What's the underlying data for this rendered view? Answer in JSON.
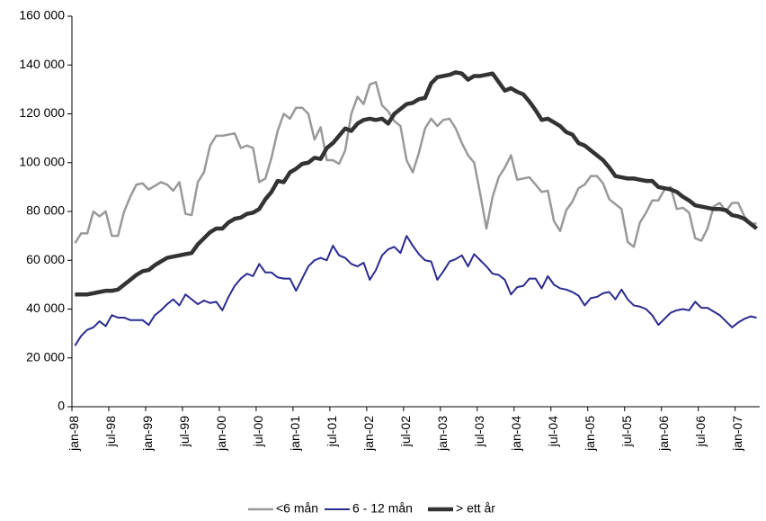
{
  "chart_data": {
    "type": "line",
    "categories": [
      "jan-98",
      null,
      null,
      null,
      null,
      null,
      "jul-98",
      null,
      null,
      null,
      null,
      null,
      "jan-99",
      null,
      null,
      null,
      null,
      null,
      "jul-99",
      null,
      null,
      null,
      null,
      null,
      "jan-00",
      null,
      null,
      null,
      null,
      null,
      "jul-00",
      null,
      null,
      null,
      null,
      null,
      "jan-01",
      null,
      null,
      null,
      null,
      null,
      "jul-01",
      null,
      null,
      null,
      null,
      null,
      "jan-02",
      null,
      null,
      null,
      null,
      null,
      "jul-02",
      null,
      null,
      null,
      null,
      null,
      "jan-03",
      null,
      null,
      null,
      null,
      null,
      "jul-03",
      null,
      null,
      null,
      null,
      null,
      "jan-04",
      null,
      null,
      null,
      null,
      null,
      "jul-04",
      null,
      null,
      null,
      null,
      null,
      "jan-05",
      null,
      null,
      null,
      null,
      null,
      "jul-05",
      null,
      null,
      null,
      null,
      null,
      "jan-06",
      null,
      null,
      null,
      null,
      null,
      "jul-06",
      null,
      null,
      null,
      null,
      null,
      "jan-07",
      null,
      null,
      null
    ],
    "series": [
      {
        "name": "<6 mån",
        "color": "#999999",
        "width": 2.5,
        "values": [
          67000,
          71000,
          71000,
          80000,
          78000,
          80000,
          70000,
          70000,
          80000,
          86000,
          91000,
          91500,
          89000,
          90500,
          92000,
          91000,
          88500,
          92000,
          79000,
          78500,
          92000,
          96000,
          107000,
          111000,
          111000,
          111500,
          112000,
          106000,
          107000,
          106000,
          92000,
          93500,
          102000,
          113000,
          120000,
          118000,
          122500,
          122500,
          120000,
          109500,
          114500,
          101000,
          101000,
          99500,
          105000,
          120000,
          127000,
          124000,
          132000,
          133000,
          123500,
          121000,
          117000,
          115000,
          101000,
          96000,
          104000,
          114000,
          118000,
          115000,
          117500,
          118000,
          114000,
          108000,
          103000,
          100000,
          87000,
          73000,
          86000,
          94000,
          98000,
          103000,
          93000,
          93500,
          94000,
          91000,
          88000,
          88500,
          76000,
          72000,
          80500,
          84000,
          89500,
          91000,
          94500,
          94500,
          91500,
          85000,
          83000,
          81000,
          67500,
          65500,
          75500,
          79500,
          84500,
          84500,
          89000,
          90000,
          81000,
          81500,
          79500,
          69000,
          68000,
          73000,
          82000,
          83500,
          80000,
          83500,
          83500,
          78000,
          75000,
          75000
        ]
      },
      {
        "name": "6 - 12 mån",
        "color": "#2b2b90",
        "width": 2,
        "values": [
          25000,
          29000,
          31500,
          32500,
          35000,
          33000,
          37500,
          36500,
          36500,
          35500,
          35500,
          35500,
          33500,
          37500,
          39500,
          42000,
          44000,
          41500,
          46000,
          44000,
          42000,
          43500,
          42500,
          43000,
          39500,
          45000,
          49500,
          52500,
          54500,
          53500,
          58500,
          55000,
          55000,
          53000,
          52500,
          52500,
          47500,
          52500,
          57500,
          60000,
          61000,
          60000,
          66000,
          62000,
          61000,
          58500,
          57500,
          59000,
          52000,
          56000,
          62000,
          64500,
          65500,
          63000,
          70000,
          66000,
          62500,
          60000,
          59500,
          52000,
          55500,
          59500,
          60500,
          62000,
          57500,
          62500,
          60000,
          57500,
          54500,
          54000,
          52000,
          46000,
          49000,
          49500,
          52500,
          52500,
          48500,
          53500,
          50000,
          48500,
          48000,
          47000,
          45500,
          41500,
          44500,
          45000,
          46500,
          47000,
          44000,
          48000,
          44000,
          41500,
          41000,
          40000,
          37500,
          33500,
          36000,
          38500,
          39500,
          40000,
          39500,
          43000,
          40500,
          40500,
          39000,
          37500,
          35000,
          32500,
          34500,
          36000,
          37000,
          36500
        ]
      },
      {
        "name": "> ett år",
        "color": "#333333",
        "width": 4.5,
        "values": [
          46000,
          46000,
          46000,
          46500,
          47000,
          47500,
          47500,
          48000,
          50000,
          52000,
          54000,
          55500,
          56000,
          58000,
          59500,
          61000,
          61500,
          62000,
          62500,
          63000,
          66500,
          69000,
          71500,
          73000,
          73000,
          75500,
          77000,
          77500,
          79000,
          79500,
          81000,
          85000,
          88000,
          92500,
          92000,
          96000,
          97500,
          99500,
          100000,
          102000,
          101500,
          106000,
          108000,
          111000,
          114000,
          113000,
          116000,
          117500,
          118000,
          117500,
          118000,
          116000,
          120000,
          122000,
          124000,
          124500,
          126000,
          126500,
          132500,
          135000,
          135500,
          136000,
          137000,
          136500,
          134000,
          135500,
          135500,
          136000,
          136500,
          133000,
          129500,
          130500,
          129000,
          128000,
          125000,
          121500,
          117500,
          118000,
          116500,
          115000,
          112500,
          111500,
          108000,
          107000,
          105000,
          103000,
          101000,
          98000,
          94500,
          94000,
          93500,
          93500,
          93000,
          92500,
          92500,
          90000,
          89500,
          89000,
          88000,
          86000,
          84500,
          82500,
          82000,
          81500,
          81000,
          81000,
          80500,
          78500,
          78000,
          77000,
          75000,
          73000
        ]
      }
    ],
    "ylim": [
      0,
      160000
    ],
    "yticks": [
      0,
      {
        "value": 20000,
        "label": "20 000"
      },
      {
        "value": 40000,
        "label": "40 000"
      },
      {
        "value": 60000,
        "label": "60 000"
      },
      {
        "value": 80000,
        "label": "80 000"
      },
      {
        "value": 100000,
        "label": "100 000"
      },
      {
        "value": 120000,
        "label": "120 000"
      },
      {
        "value": 140000,
        "label": "140 000"
      },
      {
        "value": 160000,
        "label": "160 000"
      }
    ],
    "grid": false,
    "legend": "bottom"
  }
}
